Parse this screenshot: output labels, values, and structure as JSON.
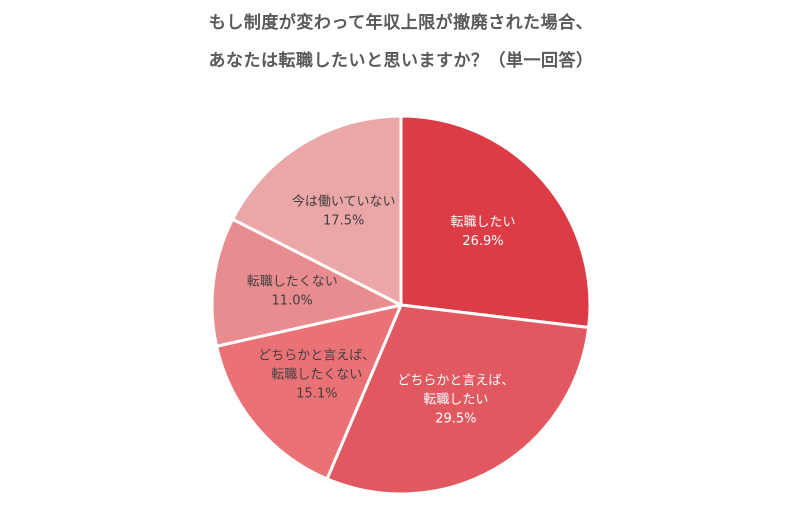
{
  "chart_data": {
    "type": "pie",
    "title_lines": [
      "もし制度が変わって年収上限が撤廃された場合、",
      "あなたは転職したいと思いますか？（単一回答）"
    ],
    "slices": [
      {
        "label_lines": [
          "転職したい"
        ],
        "value_label": "26.9%",
        "value": 26.9,
        "color": "#dc3c45",
        "text_color": "#ffffff"
      },
      {
        "label_lines": [
          "どちらかと言えば、",
          "転職したい"
        ],
        "value_label": "29.5%",
        "value": 29.5,
        "color": "#e25860",
        "text_color": "#ffffff"
      },
      {
        "label_lines": [
          "どちらかと言えば、",
          "転職したくない"
        ],
        "value_label": "15.1%",
        "value": 15.1,
        "color": "#ea7277",
        "text_color": "#404040"
      },
      {
        "label_lines": [
          "転職したくない"
        ],
        "value_label": "11.0%",
        "value": 11.0,
        "color": "#e88c8f",
        "text_color": "#404040"
      },
      {
        "label_lines": [
          "今は働いていない"
        ],
        "value_label": "17.5%",
        "value": 17.5,
        "color": "#eba6a8",
        "text_color": "#404040"
      }
    ],
    "start_angle": "12 o'clock",
    "direction": "clockwise",
    "legend": "none"
  }
}
